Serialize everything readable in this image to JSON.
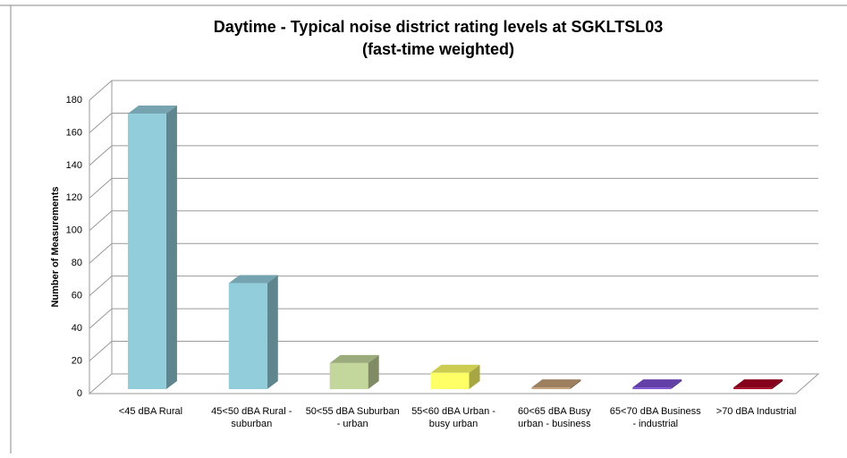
{
  "chart_data": {
    "type": "bar3d",
    "title": "Daytime - Typical noise district rating levels at SGKLTSL03",
    "subtitle": "(fast-time weighted)",
    "y_label": "Number of Measurements",
    "categories": [
      "<45 dBA Rural",
      "45<50 dBA Rural - suburban",
      "50<55 dBA Suburban - urban",
      "55<60 dBA Urban - busy urban",
      "60<65 dBA Busy urban - business",
      "65<70 dBA Business - industrial",
      ">70 dBA Industrial"
    ],
    "values": [
      169,
      65,
      16,
      10,
      1,
      1,
      1
    ],
    "colors": [
      "#92cddc",
      "#92cddc",
      "#c3d69b",
      "#ffff66",
      "#c4a078",
      "#7b4fd0",
      "#a50021"
    ],
    "ylim": [
      0,
      180
    ],
    "yticks": [
      0,
      20,
      40,
      60,
      80,
      100,
      120,
      140,
      160,
      180
    ],
    "grid": true
  }
}
